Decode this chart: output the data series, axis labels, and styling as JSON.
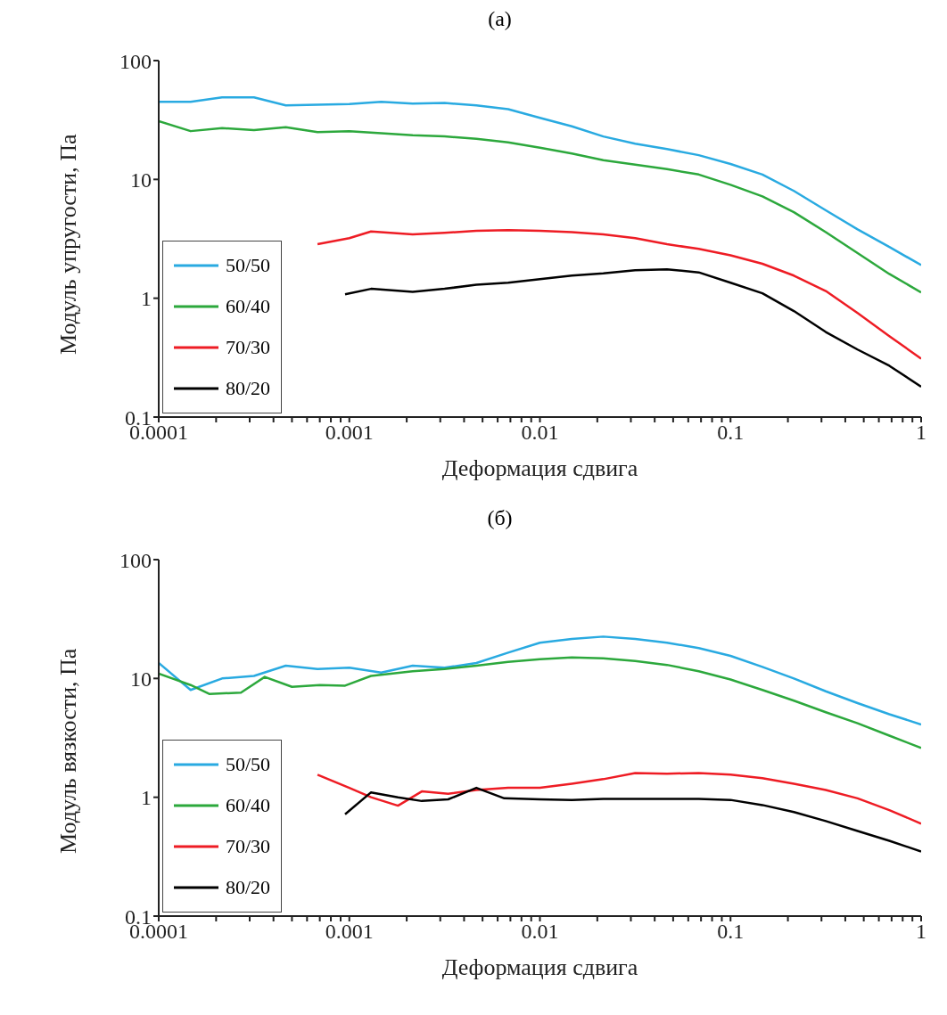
{
  "chart_data": [
    {
      "type": "line",
      "title": "(a)",
      "xlabel": "Деформация сдвига",
      "ylabel": "Модуль упругости, Па",
      "log": "xy",
      "grid": false,
      "legend": "bottom left",
      "marker": "none",
      "line_style": "solid",
      "xlim": [
        0.0001,
        1
      ],
      "ylim": [
        0.1,
        100
      ],
      "yticks": [
        0.1,
        1,
        10,
        100
      ],
      "xticks": [
        0.0001,
        {
          "value": 0.0002,
          "label": null
        },
        {
          "value": 0.0003,
          "label": null
        },
        {
          "value": 0.0004,
          "label": null
        },
        {
          "value": 0.0005,
          "label": null
        },
        {
          "value": 0.0006,
          "label": null
        },
        {
          "value": 0.0007,
          "label": null
        },
        {
          "value": 0.0008,
          "label": null
        },
        {
          "value": 0.0009,
          "label": null
        },
        0.001,
        {
          "value": 0.002,
          "label": null
        },
        {
          "value": 0.003,
          "label": null
        },
        {
          "value": 0.004,
          "label": null
        },
        {
          "value": 0.005,
          "label": null
        },
        {
          "value": 0.006,
          "label": null
        },
        {
          "value": 0.007,
          "label": null
        },
        {
          "value": 0.008,
          "label": null
        },
        {
          "value": 0.009,
          "label": null
        },
        0.01,
        {
          "value": 0.02,
          "label": null
        },
        {
          "value": 0.03,
          "label": null
        },
        {
          "value": 0.04,
          "label": null
        },
        {
          "value": 0.05,
          "label": null
        },
        {
          "value": 0.06,
          "label": null
        },
        {
          "value": 0.07,
          "label": null
        },
        {
          "value": 0.08,
          "label": null
        },
        {
          "value": 0.09,
          "label": null
        },
        0.1,
        {
          "value": 0.2,
          "label": null
        },
        {
          "value": 0.3,
          "label": null
        },
        {
          "value": 0.4,
          "label": null
        },
        {
          "value": 0.5,
          "label": null
        },
        {
          "value": 0.6,
          "label": null
        },
        {
          "value": 0.7,
          "label": null
        },
        {
          "value": 0.8,
          "label": null
        },
        {
          "value": 0.9,
          "label": null
        },
        1
      ],
      "series": [
        {
          "name": "50/50",
          "color": "#29aae1",
          "x": [
            0.0001,
            0.000147,
            0.000215,
            0.000316,
            0.000464,
            0.000681,
            0.001,
            0.00147,
            0.00215,
            0.00316,
            0.00464,
            0.00681,
            0.01,
            0.0147,
            0.0215,
            0.0316,
            0.0464,
            0.0681,
            0.1,
            0.147,
            0.215,
            0.316,
            0.464,
            0.681,
            1
          ],
          "values": [
            45,
            45,
            49,
            49,
            42,
            42.5,
            43,
            45,
            43.5,
            44,
            42,
            39,
            33,
            28,
            23,
            20,
            18,
            16,
            13.5,
            11,
            8,
            5.5,
            3.8,
            2.7,
            1.9
          ]
        },
        {
          "name": "60/40",
          "color": "#2ca83c",
          "x": [
            0.0001,
            0.000147,
            0.000215,
            0.000316,
            0.000464,
            0.000681,
            0.001,
            0.00147,
            0.00215,
            0.00316,
            0.00464,
            0.00681,
            0.01,
            0.0147,
            0.0215,
            0.0316,
            0.0464,
            0.0681,
            0.1,
            0.147,
            0.215,
            0.316,
            0.464,
            0.681,
            1
          ],
          "values": [
            31,
            25.5,
            27,
            26,
            27.5,
            25,
            25.5,
            24.5,
            23.5,
            23,
            22,
            20.5,
            18.5,
            16.5,
            14.5,
            13.3,
            12.2,
            11,
            9,
            7.2,
            5.3,
            3.6,
            2.4,
            1.6,
            1.12
          ]
        },
        {
          "name": "70/30",
          "color": "#ee1c24",
          "x": [
            0.000681,
            0.001,
            0.0013,
            0.00215,
            0.00316,
            0.00464,
            0.00681,
            0.01,
            0.0147,
            0.0215,
            0.0316,
            0.0464,
            0.0681,
            0.1,
            0.147,
            0.215,
            0.316,
            0.464,
            0.681,
            1
          ],
          "values": [
            2.85,
            3.2,
            3.65,
            3.45,
            3.55,
            3.7,
            3.75,
            3.7,
            3.6,
            3.45,
            3.2,
            2.85,
            2.6,
            2.3,
            1.95,
            1.55,
            1.15,
            0.75,
            0.48,
            0.31
          ]
        },
        {
          "name": "80/20",
          "color": "#000000",
          "x": [
            0.00095,
            0.0013,
            0.00215,
            0.00316,
            0.00464,
            0.00681,
            0.01,
            0.0147,
            0.0215,
            0.0316,
            0.0464,
            0.0681,
            0.1,
            0.147,
            0.215,
            0.316,
            0.464,
            0.681,
            1
          ],
          "values": [
            1.08,
            1.2,
            1.13,
            1.2,
            1.3,
            1.35,
            1.45,
            1.55,
            1.62,
            1.72,
            1.75,
            1.65,
            1.35,
            1.1,
            0.78,
            0.52,
            0.37,
            0.27,
            0.18
          ]
        }
      ]
    },
    {
      "type": "line",
      "title": "(б)",
      "xlabel": "Деформация сдвига",
      "ylabel": "Модуль вязкости, Па",
      "log": "xy",
      "grid": false,
      "legend": "bottom left",
      "marker": "none",
      "line_style": "solid",
      "xlim": [
        0.0001,
        1
      ],
      "ylim": [
        0.1,
        100
      ],
      "yticks": [
        0.1,
        1,
        10,
        100
      ],
      "xticks": [
        0.0001,
        {
          "value": 0.0002,
          "label": null
        },
        {
          "value": 0.0003,
          "label": null
        },
        {
          "value": 0.0004,
          "label": null
        },
        {
          "value": 0.0005,
          "label": null
        },
        {
          "value": 0.0006,
          "label": null
        },
        {
          "value": 0.0007,
          "label": null
        },
        {
          "value": 0.0008,
          "label": null
        },
        {
          "value": 0.0009,
          "label": null
        },
        0.001,
        {
          "value": 0.002,
          "label": null
        },
        {
          "value": 0.003,
          "label": null
        },
        {
          "value": 0.004,
          "label": null
        },
        {
          "value": 0.005,
          "label": null
        },
        {
          "value": 0.006,
          "label": null
        },
        {
          "value": 0.007,
          "label": null
        },
        {
          "value": 0.008,
          "label": null
        },
        {
          "value": 0.009,
          "label": null
        },
        0.01,
        {
          "value": 0.02,
          "label": null
        },
        {
          "value": 0.03,
          "label": null
        },
        {
          "value": 0.04,
          "label": null
        },
        {
          "value": 0.05,
          "label": null
        },
        {
          "value": 0.06,
          "label": null
        },
        {
          "value": 0.07,
          "label": null
        },
        {
          "value": 0.08,
          "label": null
        },
        {
          "value": 0.09,
          "label": null
        },
        0.1,
        {
          "value": 0.2,
          "label": null
        },
        {
          "value": 0.3,
          "label": null
        },
        {
          "value": 0.4,
          "label": null
        },
        {
          "value": 0.5,
          "label": null
        },
        {
          "value": 0.6,
          "label": null
        },
        {
          "value": 0.7,
          "label": null
        },
        {
          "value": 0.8,
          "label": null
        },
        {
          "value": 0.9,
          "label": null
        },
        1
      ],
      "series": [
        {
          "name": "50/50",
          "color": "#29aae1",
          "x": [
            0.0001,
            0.000147,
            0.000215,
            0.000316,
            0.000464,
            0.000681,
            0.001,
            0.00147,
            0.00215,
            0.00316,
            0.00464,
            0.00681,
            0.01,
            0.0147,
            0.0215,
            0.0316,
            0.0464,
            0.0681,
            0.1,
            0.147,
            0.215,
            0.316,
            0.464,
            0.681,
            1
          ],
          "values": [
            13.5,
            8,
            10,
            10.5,
            12.8,
            12,
            12.3,
            11.2,
            12.8,
            12.3,
            13.5,
            16.5,
            20,
            21.5,
            22.5,
            21.5,
            20,
            18,
            15.5,
            12.5,
            10,
            7.8,
            6.2,
            5,
            4.1
          ]
        },
        {
          "name": "60/40",
          "color": "#2ca83c",
          "x": [
            0.0001,
            0.000147,
            0.000185,
            0.00027,
            0.00036,
            0.0005,
            0.0007,
            0.00095,
            0.0013,
            0.00215,
            0.00316,
            0.00464,
            0.00681,
            0.01,
            0.0147,
            0.0215,
            0.0316,
            0.0464,
            0.0681,
            0.1,
            0.147,
            0.215,
            0.316,
            0.464,
            0.681,
            1
          ],
          "values": [
            11,
            8.8,
            7.4,
            7.6,
            10.3,
            8.5,
            8.8,
            8.7,
            10.5,
            11.5,
            12,
            12.8,
            13.8,
            14.5,
            15,
            14.8,
            14,
            13,
            11.5,
            9.8,
            8,
            6.5,
            5.2,
            4.2,
            3.3,
            2.6
          ]
        },
        {
          "name": "70/30",
          "color": "#ee1c24",
          "x": [
            0.000681,
            0.001,
            0.0013,
            0.0018,
            0.0024,
            0.0033,
            0.00464,
            0.00681,
            0.01,
            0.0147,
            0.0215,
            0.0316,
            0.0464,
            0.0681,
            0.1,
            0.147,
            0.215,
            0.316,
            0.464,
            0.681,
            1
          ],
          "values": [
            1.55,
            1.2,
            1,
            0.85,
            1.12,
            1.07,
            1.15,
            1.2,
            1.2,
            1.3,
            1.42,
            1.6,
            1.58,
            1.6,
            1.55,
            1.45,
            1.3,
            1.15,
            0.98,
            0.78,
            0.6
          ]
        },
        {
          "name": "80/20",
          "color": "#000000",
          "x": [
            0.00095,
            0.0013,
            0.0018,
            0.0024,
            0.0033,
            0.00464,
            0.0065,
            0.01,
            0.0147,
            0.0215,
            0.0316,
            0.0464,
            0.0681,
            0.1,
            0.147,
            0.215,
            0.316,
            0.464,
            0.681,
            1
          ],
          "values": [
            0.72,
            1.1,
            1,
            0.93,
            0.96,
            1.2,
            0.98,
            0.96,
            0.95,
            0.97,
            0.97,
            0.97,
            0.97,
            0.95,
            0.86,
            0.75,
            0.63,
            0.52,
            0.43,
            0.35
          ]
        }
      ]
    }
  ]
}
